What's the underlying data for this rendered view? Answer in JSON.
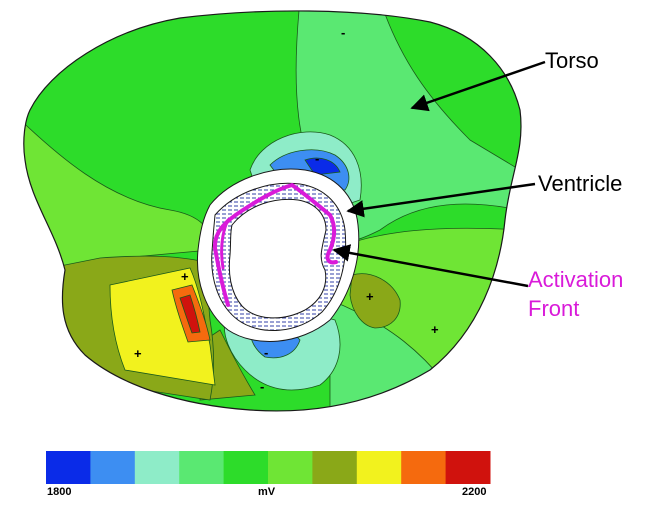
{
  "labels": {
    "torso": "Torso",
    "ventricle": "Ventricle",
    "activation": "Activation",
    "front": "Front"
  },
  "signs": {
    "negative": "-",
    "positive": "+"
  },
  "colorbar": {
    "min_label": "1800",
    "unit_label": "mV",
    "max_label": "2200",
    "colors": [
      "#0a2be8",
      "#3d8ef2",
      "#8eecc8",
      "#5ae872",
      "#2ddc2a",
      "#6fe535",
      "#8aa818",
      "#f2f21e",
      "#f56a0e",
      "#d0120d"
    ]
  },
  "colors": {
    "activation_front": "#d91ad9",
    "arrow": "#000000"
  }
}
